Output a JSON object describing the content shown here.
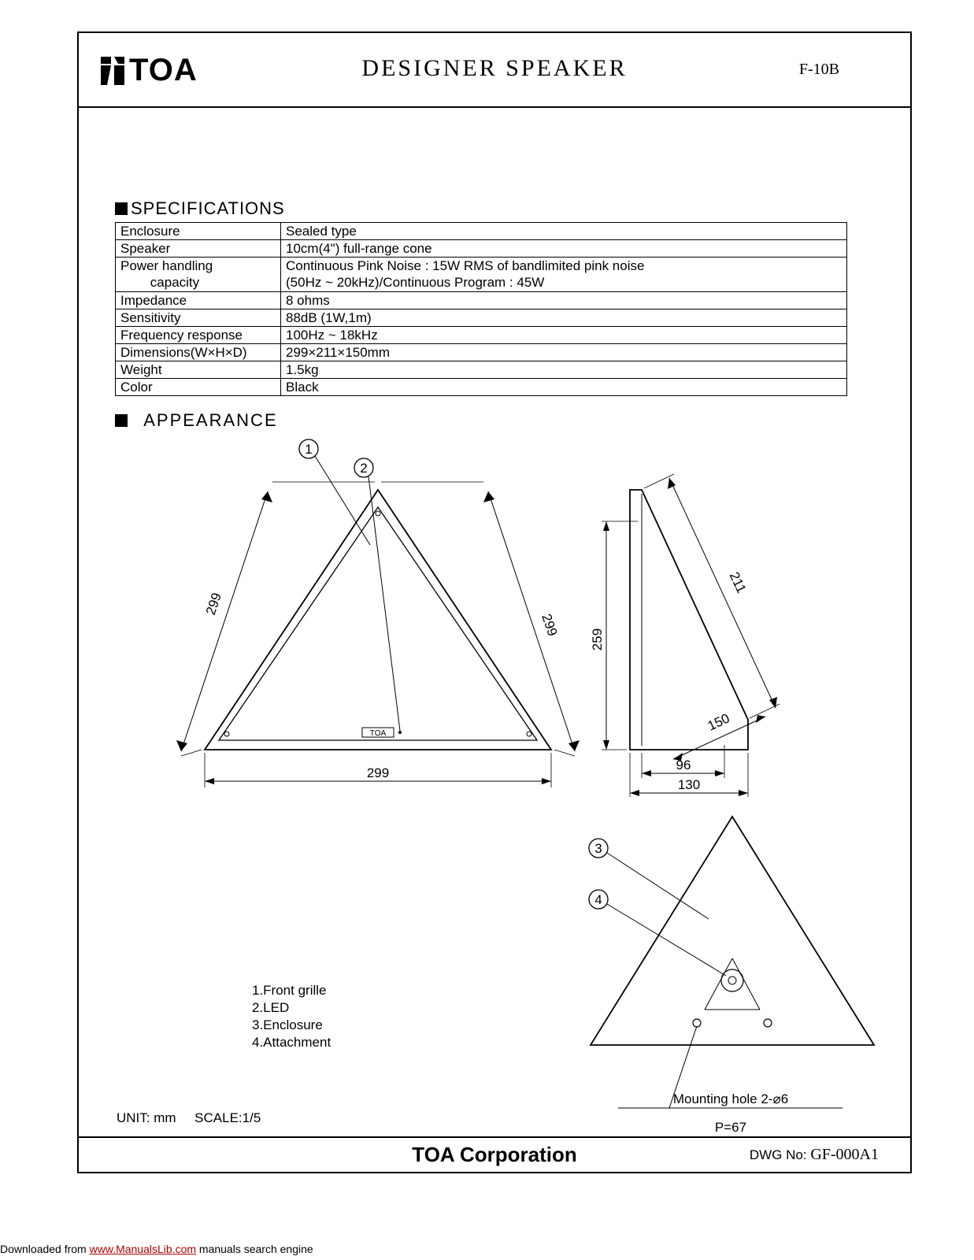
{
  "header": {
    "logo_text": "TOA",
    "title": "DESIGNER SPEAKER",
    "model": "F-10B"
  },
  "sections": {
    "specifications": "SPECIFICATIONS",
    "appearance": "APPEARANCE"
  },
  "specs": {
    "rows": [
      {
        "label": "Enclosure",
        "value": "Sealed type"
      },
      {
        "label": "Speaker",
        "value": "10cm(4\") full-range cone"
      },
      {
        "label": "Power handling\n        capacity",
        "value": "Continuous Pink Noise : 15W RMS of bandlimited pink noise\n(50Hz ~ 20kHz)/Continuous Program : 45W",
        "rows": 2
      },
      {
        "label": "Impedance",
        "value": "8 ohms"
      },
      {
        "label": "Sensitivity",
        "value": "88dB (1W,1m)"
      },
      {
        "label": "Frequency response",
        "value": "100Hz ~ 18kHz"
      },
      {
        "label": "Dimensions(W×H×D)",
        "value": "299×211×150mm"
      },
      {
        "label": "Weight",
        "value": "1.5kg"
      },
      {
        "label": "Color",
        "value": "Black"
      }
    ]
  },
  "drawing": {
    "callouts": {
      "1": "1",
      "2": "2",
      "3": "3",
      "4": "4"
    },
    "dims": {
      "front_side_a": "299",
      "front_side_b": "299",
      "front_base": "299",
      "side_top": "211",
      "side_height": "259",
      "side_depth": "150",
      "side_inner": "96",
      "side_outer": "130",
      "toa_badge": "TOA"
    },
    "legend": {
      "l1": "1.Front grille",
      "l2": "2.LED",
      "l3": "3.Enclosure",
      "l4": "4.Attachment"
    },
    "mounting": "Mounting hole 2-⌀6",
    "pitch": "P=67",
    "unit": "UNIT: mm",
    "scale": "SCALE:1/5"
  },
  "footer": {
    "corp": "TOA Corporation",
    "dwg_label": "DWG No:",
    "dwg_no": "GF-000A1"
  },
  "download": {
    "pre": "Downloaded from ",
    "link": "www.ManualsLib.com",
    "post": " manuals search engine"
  },
  "style": {
    "stroke": "#000000",
    "bg": "#ffffff",
    "thin": 1.3,
    "med": 1.8
  }
}
